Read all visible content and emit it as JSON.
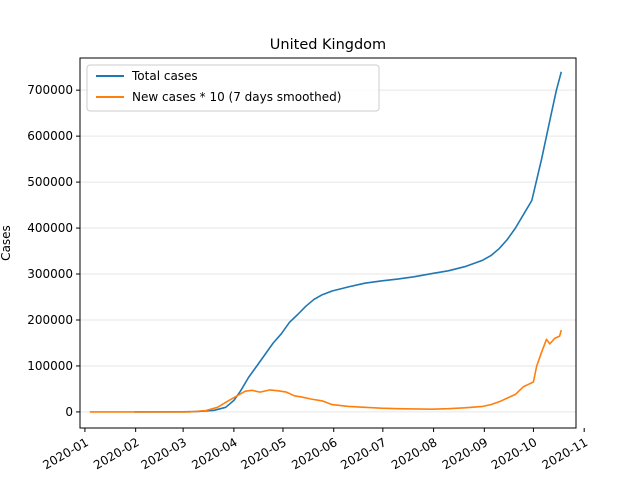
{
  "chart_data": {
    "type": "line",
    "title": "United Kingdom",
    "xlabel": "",
    "ylabel": "Cases",
    "x_type": "date",
    "xlim": [
      "2019-12-29",
      "2020-10-27"
    ],
    "ylim": [
      -35000,
      770000
    ],
    "x_ticks": [
      "2020-01",
      "2020-02",
      "2020-03",
      "2020-04",
      "2020-05",
      "2020-06",
      "2020-07",
      "2020-08",
      "2020-09",
      "2020-10",
      "2020-11"
    ],
    "y_ticks": [
      0,
      100000,
      200000,
      300000,
      400000,
      500000,
      600000,
      700000
    ],
    "y_tick_labels": [
      "0",
      "100000",
      "200000",
      "300000",
      "400000",
      "500000",
      "600000",
      "700000"
    ],
    "grid": "horizontal",
    "legend_position": "top-left",
    "series": [
      {
        "name": "Total cases",
        "color": "#1f77b4",
        "points": [
          [
            "2020-01-31",
            0
          ],
          [
            "2020-02-29",
            200
          ],
          [
            "2020-03-10",
            1000
          ],
          [
            "2020-03-20",
            3500
          ],
          [
            "2020-03-27",
            10000
          ],
          [
            "2020-04-01",
            25000
          ],
          [
            "2020-04-05",
            45000
          ],
          [
            "2020-04-10",
            75000
          ],
          [
            "2020-04-15",
            100000
          ],
          [
            "2020-04-20",
            125000
          ],
          [
            "2020-04-25",
            150000
          ],
          [
            "2020-04-30",
            170000
          ],
          [
            "2020-05-05",
            195000
          ],
          [
            "2020-05-10",
            212000
          ],
          [
            "2020-05-15",
            230000
          ],
          [
            "2020-05-20",
            245000
          ],
          [
            "2020-05-25",
            255000
          ],
          [
            "2020-05-31",
            263000
          ],
          [
            "2020-06-10",
            272000
          ],
          [
            "2020-06-20",
            280000
          ],
          [
            "2020-06-30",
            285000
          ],
          [
            "2020-07-10",
            289000
          ],
          [
            "2020-07-20",
            294000
          ],
          [
            "2020-07-31",
            301000
          ],
          [
            "2020-08-10",
            307000
          ],
          [
            "2020-08-20",
            316000
          ],
          [
            "2020-08-31",
            330000
          ],
          [
            "2020-09-05",
            340000
          ],
          [
            "2020-09-10",
            355000
          ],
          [
            "2020-09-15",
            375000
          ],
          [
            "2020-09-20",
            400000
          ],
          [
            "2020-09-25",
            430000
          ],
          [
            "2020-09-30",
            460000
          ],
          [
            "2020-10-03",
            505000
          ],
          [
            "2020-10-06",
            550000
          ],
          [
            "2020-10-09",
            600000
          ],
          [
            "2020-10-12",
            650000
          ],
          [
            "2020-10-15",
            700000
          ],
          [
            "2020-10-18",
            740000
          ]
        ]
      },
      {
        "name": "New cases * 10 (7 days smoothed)",
        "color": "#ff7f0e",
        "points": [
          [
            "2020-01-04",
            0
          ],
          [
            "2020-03-05",
            0
          ],
          [
            "2020-03-15",
            3000
          ],
          [
            "2020-03-22",
            10000
          ],
          [
            "2020-03-29",
            25000
          ],
          [
            "2020-04-03",
            35000
          ],
          [
            "2020-04-08",
            45000
          ],
          [
            "2020-04-12",
            47000
          ],
          [
            "2020-04-17",
            43000
          ],
          [
            "2020-04-23",
            48000
          ],
          [
            "2020-04-28",
            46000
          ],
          [
            "2020-05-03",
            43000
          ],
          [
            "2020-05-08",
            35000
          ],
          [
            "2020-05-13",
            32000
          ],
          [
            "2020-05-18",
            28000
          ],
          [
            "2020-05-25",
            24000
          ],
          [
            "2020-05-31",
            16000
          ],
          [
            "2020-06-10",
            12000
          ],
          [
            "2020-06-20",
            10000
          ],
          [
            "2020-06-30",
            8000
          ],
          [
            "2020-07-10",
            7000
          ],
          [
            "2020-07-20",
            6500
          ],
          [
            "2020-07-31",
            6000
          ],
          [
            "2020-08-10",
            7000
          ],
          [
            "2020-08-20",
            9000
          ],
          [
            "2020-08-31",
            12000
          ],
          [
            "2020-09-05",
            16000
          ],
          [
            "2020-09-10",
            22000
          ],
          [
            "2020-09-15",
            30000
          ],
          [
            "2020-09-20",
            38000
          ],
          [
            "2020-09-25",
            55000
          ],
          [
            "2020-09-28",
            60000
          ],
          [
            "2020-10-01",
            65000
          ],
          [
            "2020-10-03",
            100000
          ],
          [
            "2020-10-06",
            130000
          ],
          [
            "2020-10-09",
            158000
          ],
          [
            "2020-10-11",
            148000
          ],
          [
            "2020-10-14",
            160000
          ],
          [
            "2020-10-17",
            165000
          ],
          [
            "2020-10-18",
            178000
          ]
        ]
      }
    ]
  }
}
